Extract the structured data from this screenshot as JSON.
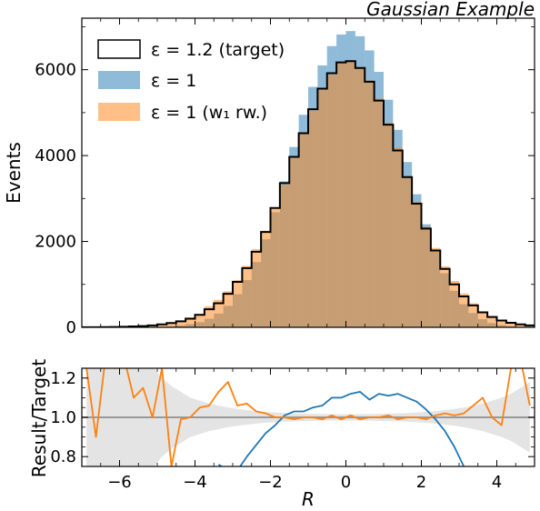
{
  "chart_data": [
    {
      "type": "histogram",
      "title": "Gaussian Example",
      "xlabel": "",
      "ylabel": "Events",
      "xlim": [
        -7,
        5
      ],
      "ylim": [
        0,
        7200
      ],
      "grid": false,
      "legend_position": "top-left",
      "x_ticks": [
        -6,
        -4,
        -2,
        0,
        2,
        4
      ],
      "y_ticks": [
        0,
        2000,
        4000,
        6000
      ],
      "y_tick_labels": [
        "0",
        "2000",
        "4000",
        "6000"
      ],
      "bin_edges": [
        -7.0,
        -6.75,
        -6.5,
        -6.25,
        -6.0,
        -5.75,
        -5.5,
        -5.25,
        -5.0,
        -4.75,
        -4.5,
        -4.25,
        -4.0,
        -3.75,
        -3.5,
        -3.25,
        -3.0,
        -2.75,
        -2.5,
        -2.25,
        -2.0,
        -1.75,
        -1.5,
        -1.25,
        -1.0,
        -0.75,
        -0.5,
        -0.25,
        0.0,
        0.25,
        0.5,
        0.75,
        1.0,
        1.25,
        1.5,
        1.75,
        2.0,
        2.25,
        2.5,
        2.75,
        3.0,
        3.25,
        3.5,
        3.75,
        4.0,
        4.25,
        4.5,
        4.75,
        5.0
      ],
      "series": [
        {
          "name": "ε = 1.2 (target)",
          "style": "step",
          "color": "#000000",
          "values": [
            2,
            3,
            5,
            8,
            12,
            20,
            30,
            45,
            70,
            100,
            140,
            200,
            290,
            420,
            560,
            780,
            1060,
            1380,
            1760,
            2220,
            2780,
            3360,
            3970,
            4520,
            5080,
            5560,
            5920,
            6170,
            6200,
            6040,
            5720,
            5280,
            4720,
            4120,
            3500,
            2880,
            2300,
            1790,
            1360,
            1000,
            720,
            510,
            350,
            240,
            160,
            105,
            70,
            45
          ]
        },
        {
          "name": "ε = 1",
          "style": "bar",
          "color": "#1f77b4",
          "values": [
            0,
            0,
            0,
            0,
            0,
            2,
            4,
            8,
            15,
            25,
            45,
            75,
            120,
            200,
            320,
            500,
            770,
            1100,
            1520,
            2050,
            2680,
            3400,
            4200,
            4950,
            5600,
            6100,
            6550,
            6820,
            6900,
            6780,
            6450,
            5950,
            5300,
            4600,
            3850,
            3100,
            2400,
            1780,
            1260,
            850,
            540,
            330,
            190,
            100,
            50,
            25,
            10,
            5
          ]
        },
        {
          "name": "ε = 1 (w₁ rw.)",
          "style": "bar",
          "color": "#ff7f0e",
          "values": [
            0,
            0,
            0,
            0,
            0,
            0,
            30,
            15,
            60,
            110,
            150,
            230,
            310,
            490,
            640,
            840,
            1100,
            1430,
            1820,
            2250,
            2760,
            3320,
            3950,
            4500,
            5050,
            5550,
            5880,
            6150,
            6220,
            6060,
            5750,
            5330,
            4760,
            4190,
            3520,
            2930,
            2340,
            1850,
            1420,
            1080,
            790,
            560,
            370,
            260,
            170,
            120,
            85,
            60
          ]
        }
      ]
    },
    {
      "type": "line",
      "xlabel": "R",
      "ylabel": "Result/Target",
      "xlim": [
        -7,
        5
      ],
      "ylim": [
        0.75,
        1.25
      ],
      "x_ticks": [
        -6,
        -4,
        -2,
        0,
        2,
        4
      ],
      "x_tick_labels": [
        "−6",
        "−4",
        "−2",
        "0",
        "2",
        "4"
      ],
      "y_ticks": [
        0.8,
        1.0,
        1.2
      ],
      "y_tick_labels": [
        "0.8",
        "1.0",
        "1.2"
      ],
      "reference_line": 1.0,
      "x": [
        -6.875,
        -6.625,
        -6.375,
        -6.125,
        -5.875,
        -5.625,
        -5.375,
        -5.125,
        -4.875,
        -4.625,
        -4.375,
        -4.125,
        -3.875,
        -3.625,
        -3.375,
        -3.125,
        -2.875,
        -2.625,
        -2.375,
        -2.125,
        -1.875,
        -1.625,
        -1.375,
        -1.125,
        -0.875,
        -0.625,
        -0.375,
        -0.125,
        0.125,
        0.375,
        0.625,
        0.875,
        1.125,
        1.375,
        1.625,
        1.875,
        2.125,
        2.375,
        2.625,
        2.875,
        3.125,
        3.375,
        3.625,
        3.875,
        4.125,
        4.375,
        4.625,
        4.875
      ],
      "uncertainty_band": {
        "color": "#d9d9d9",
        "half_width": [
          0.6,
          0.6,
          0.5,
          0.45,
          0.42,
          0.38,
          0.32,
          0.26,
          0.2,
          0.16,
          0.13,
          0.1,
          0.085,
          0.07,
          0.06,
          0.05,
          0.043,
          0.037,
          0.032,
          0.028,
          0.025,
          0.022,
          0.02,
          0.019,
          0.018,
          0.017,
          0.016,
          0.016,
          0.016,
          0.016,
          0.017,
          0.018,
          0.019,
          0.02,
          0.022,
          0.025,
          0.028,
          0.032,
          0.037,
          0.043,
          0.05,
          0.06,
          0.07,
          0.085,
          0.1,
          0.12,
          0.15,
          0.18
        ]
      },
      "series": [
        {
          "name": "ε = 1",
          "color": "#1f77b4",
          "values": [
            null,
            null,
            null,
            null,
            0.75,
            null,
            null,
            null,
            null,
            null,
            null,
            null,
            null,
            null,
            0.76,
            0.73,
            0.73,
            0.8,
            0.86,
            0.92,
            0.96,
            1.01,
            1.03,
            1.03,
            1.05,
            1.06,
            1.1,
            1.1,
            1.12,
            1.13,
            1.09,
            1.12,
            1.11,
            1.12,
            1.1,
            1.08,
            1.04,
            0.99,
            0.93,
            0.85,
            0.75,
            null,
            null,
            null,
            null,
            null,
            null,
            null
          ]
        },
        {
          "name": "ε = 1 (w₁ rw.)",
          "color": "#ff7f0e",
          "values": [
            1.25,
            0.9,
            1.3,
            1.25,
            1.3,
            1.1,
            1.15,
            1.0,
            1.25,
            0.75,
            0.99,
            1.0,
            1.05,
            1.06,
            1.13,
            1.18,
            1.06,
            1.07,
            1.03,
            1.02,
            1.0,
            1.0,
            0.99,
            1.0,
            1.0,
            0.99,
            1.01,
            0.99,
            1.01,
            0.99,
            1.0,
            1.0,
            1.01,
            0.99,
            1.0,
            1.0,
            0.99,
            1.01,
            1.02,
            1.01,
            1.02,
            1.06,
            1.1,
            1.0,
            0.96,
            1.25,
            1.3,
            1.06
          ]
        }
      ]
    }
  ]
}
